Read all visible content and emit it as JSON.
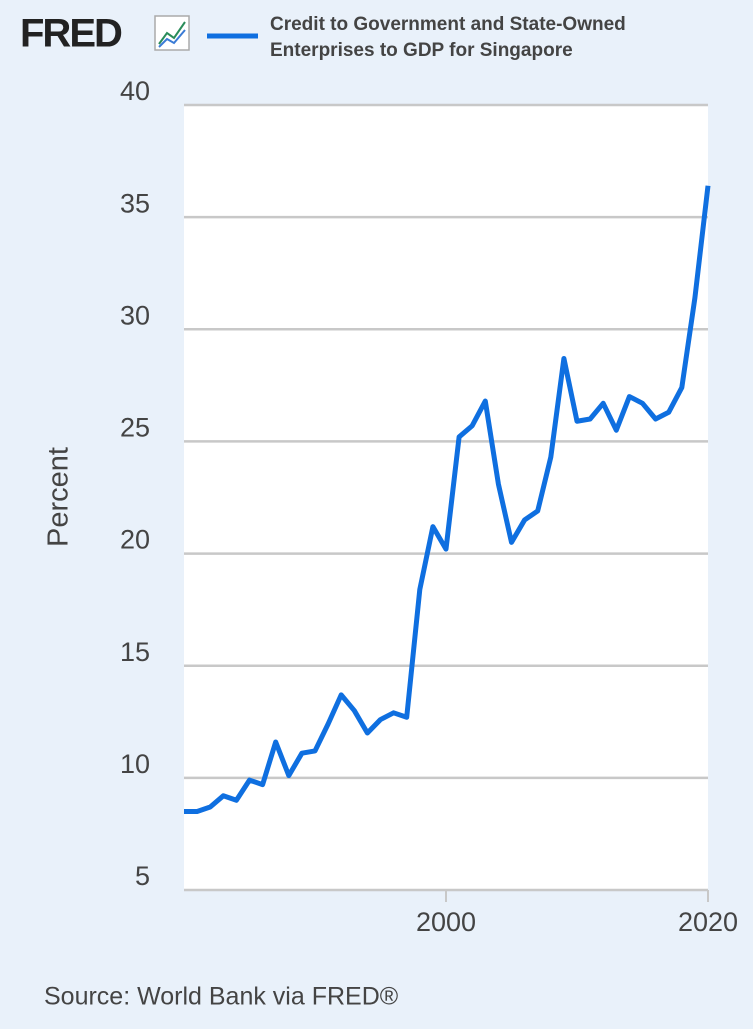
{
  "chart_data": {
    "type": "line",
    "logo": "FRED",
    "y_label": "Percent",
    "source": "Source: World Bank via FRED®",
    "x": [
      1980,
      1981,
      1982,
      1983,
      1984,
      1985,
      1986,
      1987,
      1988,
      1989,
      1990,
      1991,
      1992,
      1993,
      1994,
      1995,
      1996,
      1997,
      1998,
      1999,
      2000,
      2001,
      2002,
      2003,
      2004,
      2005,
      2006,
      2007,
      2008,
      2009,
      2010,
      2011,
      2012,
      2013,
      2014,
      2015,
      2016,
      2017,
      2018,
      2019,
      2020
    ],
    "series": [
      {
        "name": "Credit to Government and State-Owned Enterprises to GDP for Singapore",
        "color": "#0f6fe0",
        "values": [
          8.5,
          8.5,
          8.7,
          9.2,
          9.0,
          9.9,
          9.7,
          11.6,
          10.1,
          11.1,
          11.2,
          12.4,
          13.7,
          13.0,
          12.0,
          12.6,
          12.9,
          12.7,
          18.4,
          21.2,
          20.2,
          25.2,
          25.7,
          26.8,
          23.1,
          20.5,
          21.5,
          21.9,
          24.3,
          28.7,
          25.9,
          26.0,
          26.7,
          25.5,
          27.0,
          26.7,
          26.0,
          26.3,
          27.4,
          31.4,
          36.4
        ]
      }
    ],
    "xlim": [
      1980,
      2020
    ],
    "xticks": [
      2000,
      2020
    ],
    "ylim": [
      5,
      40
    ],
    "yticks": [
      5,
      10,
      15,
      20,
      25,
      30,
      35,
      40
    ],
    "grid": true
  }
}
